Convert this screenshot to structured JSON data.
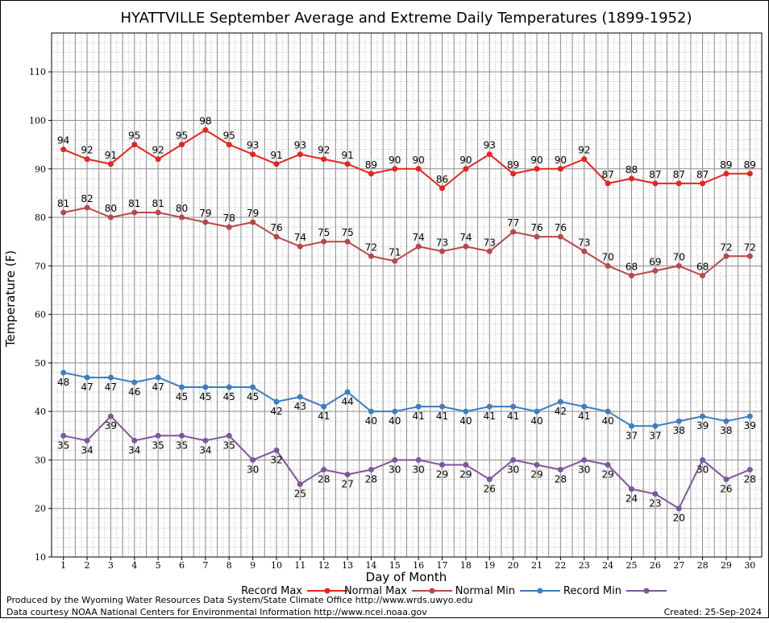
{
  "chart_data": {
    "type": "line",
    "title": "HYATTVILLE September Average and Extreme Daily Temperatures (1899-1952)",
    "xlabel": "Day of Month",
    "ylabel": "Temperature (F)",
    "xlim": [
      1,
      30
    ],
    "ylim": [
      10,
      118
    ],
    "y_ticks": [
      10,
      20,
      30,
      40,
      50,
      60,
      70,
      80,
      90,
      100,
      110
    ],
    "grid": true,
    "legend_position": "bottom",
    "x": [
      1,
      2,
      3,
      4,
      5,
      6,
      7,
      8,
      9,
      10,
      11,
      12,
      13,
      14,
      15,
      16,
      17,
      18,
      19,
      20,
      21,
      22,
      23,
      24,
      25,
      26,
      27,
      28,
      29,
      30
    ],
    "series": [
      {
        "name": "Record Max",
        "color": "#e8231f",
        "label_position": "above",
        "values": [
          94,
          92,
          91,
          95,
          92,
          95,
          98,
          95,
          93,
          91,
          93,
          92,
          91,
          89,
          90,
          90,
          86,
          90,
          93,
          89,
          90,
          90,
          92,
          87,
          88,
          87,
          87,
          87,
          89,
          89
        ]
      },
      {
        "name": "Normal Max",
        "color": "#b84848",
        "label_position": "above",
        "values": [
          81,
          82,
          80,
          81,
          81,
          80,
          79,
          78,
          79,
          76,
          74,
          75,
          75,
          72,
          71,
          74,
          73,
          74,
          73,
          77,
          76,
          76,
          73,
          70,
          68,
          69,
          70,
          68,
          72,
          72
        ]
      },
      {
        "name": "Normal Min",
        "color": "#3d7dc0",
        "label_position": "below",
        "values": [
          48,
          47,
          47,
          46,
          47,
          45,
          45,
          45,
          45,
          42,
          43,
          41,
          44,
          40,
          40,
          41,
          41,
          40,
          41,
          41,
          40,
          42,
          41,
          40,
          37,
          37,
          38,
          39,
          38,
          39
        ]
      },
      {
        "name": "Record Min",
        "color": "#7d569e",
        "label_position": "below",
        "values": [
          35,
          34,
          39,
          34,
          35,
          35,
          34,
          35,
          30,
          32,
          25,
          28,
          27,
          28,
          30,
          30,
          29,
          29,
          26,
          30,
          29,
          28,
          30,
          29,
          24,
          23,
          20,
          30,
          26,
          28
        ]
      }
    ]
  },
  "footer": {
    "produced_by": "Produced by the Wyoming Water Resources Data System/State Climate Office http://www.wrds.uwyo.edu",
    "data_courtesy": "Data courtesy NOAA National Centers for Environmental Information http://www.ncei.noaa.gov",
    "created": "Created:  25-Sep-2024"
  }
}
